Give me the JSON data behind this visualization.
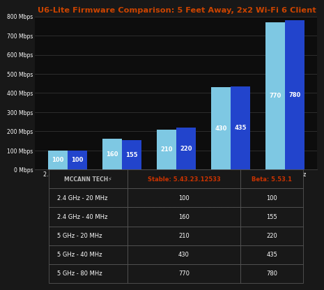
{
  "title": "U6-Lite Firmware Comparison: 5 Feet Away, 2x2 Wi-Fi 6 Client",
  "categories": [
    "2.4 GHz - 20 MHz",
    "2.4 GHz - 40 MHz",
    "5 GHz - 20 MHz",
    "5 GHz - 40 MHz",
    "5 GHz - 80 MHz"
  ],
  "stable_values": [
    100,
    160,
    210,
    430,
    770
  ],
  "beta_values": [
    100,
    155,
    220,
    435,
    780
  ],
  "stable_label": "Stable: 5.43.23.12533",
  "beta_label": "Beta: 5.53.1",
  "stable_color": "#7EC8E3",
  "beta_color": "#2244CC",
  "ylim": [
    0,
    800
  ],
  "yticks": [
    0,
    100,
    200,
    300,
    400,
    500,
    600,
    700,
    800
  ],
  "ytick_labels": [
    "0 Mbps",
    "100 Mbps",
    "200 Mbps",
    "300 Mbps",
    "400 Mbps",
    "500 Mbps",
    "600 Mbps",
    "700 Mbps",
    "800 Mbps"
  ],
  "background_color": "#181818",
  "plot_bg_color": "#0d0d0d",
  "grid_color": "#3a3a3a",
  "text_color": "#ffffff",
  "title_color": "#CC4400",
  "bar_label_color": "#ffffff",
  "table_header_stable_color": "#CC3300",
  "table_header_beta_color": "#CC3300",
  "table_bg_color": "#181818",
  "table_border_color": "#555555",
  "mccann_text": "MCCANN TECH⚡",
  "table_stable_header": "Stable: 5.43.23.12533",
  "table_beta_header": "Beta: 5.53.1"
}
